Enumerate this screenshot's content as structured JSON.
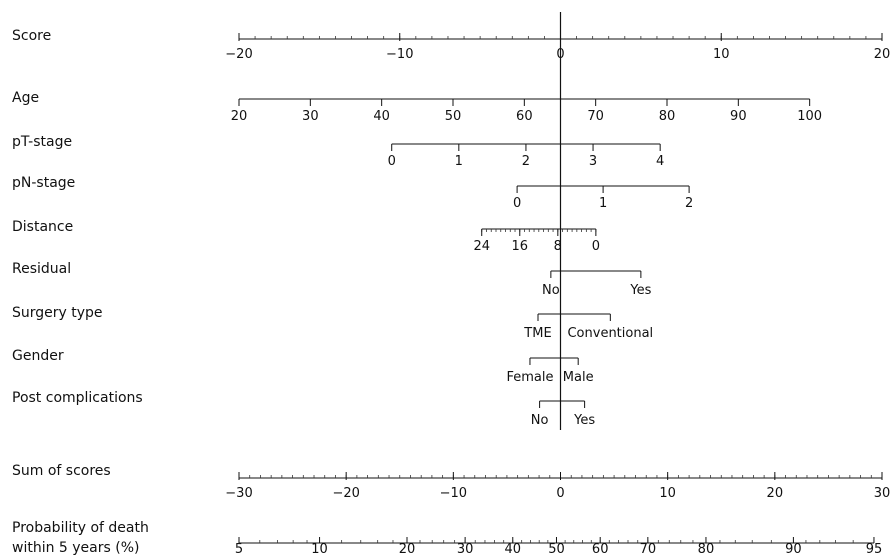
{
  "chart_data": {
    "type": "nomogram",
    "rows": [
      {
        "id": "score",
        "label": "Score",
        "kind": "axis",
        "min": -20,
        "max": 20,
        "ticks": [
          -20,
          -10,
          0,
          10,
          20
        ],
        "tick_labels": [
          "−20",
          "−10",
          "0",
          "10",
          "20"
        ],
        "minor_step": 1
      },
      {
        "id": "age",
        "label": "Age",
        "kind": "axis",
        "score_min": -20,
        "score_max": 15.5,
        "values": [
          20,
          30,
          40,
          50,
          60,
          70,
          80,
          90,
          100
        ],
        "tick_labels": [
          "20",
          "30",
          "40",
          "50",
          "60",
          "70",
          "80",
          "90",
          "100"
        ]
      },
      {
        "id": "pt-stage",
        "label": "pT-stage",
        "kind": "axis",
        "score_min": -10.5,
        "score_max": 6.2,
        "values": [
          0,
          1,
          2,
          3,
          4
        ],
        "tick_labels": [
          "0",
          "1",
          "2",
          "3",
          "4"
        ]
      },
      {
        "id": "pn-stage",
        "label": "pN-stage",
        "kind": "axis",
        "score_min": -2.7,
        "score_max": 8.0,
        "values": [
          0,
          1,
          2
        ],
        "tick_labels": [
          "0",
          "1",
          "2"
        ]
      },
      {
        "id": "distance",
        "label": "Distance",
        "kind": "axis",
        "score_min": -4.9,
        "score_max": 2.2,
        "values": [
          24,
          16,
          8,
          0
        ],
        "tick_labels": [
          "24",
          "16",
          "8",
          "0"
        ],
        "minor_count": 24
      },
      {
        "id": "residual",
        "label": "Residual",
        "kind": "categorical",
        "categories": [
          "No",
          "Yes"
        ],
        "scores": [
          -0.6,
          5.0
        ]
      },
      {
        "id": "surgery-type",
        "label": "Surgery type",
        "kind": "categorical",
        "categories": [
          "TME",
          "Conventional"
        ],
        "scores": [
          -1.4,
          3.1
        ]
      },
      {
        "id": "gender",
        "label": "Gender",
        "kind": "categorical",
        "categories": [
          "Female",
          "Male"
        ],
        "scores": [
          -1.9,
          1.1
        ]
      },
      {
        "id": "post-complications",
        "label": "Post complications",
        "kind": "categorical",
        "categories": [
          "No",
          "Yes"
        ],
        "scores": [
          -1.3,
          1.5
        ]
      },
      {
        "id": "sum-of-scores",
        "label": "Sum of scores",
        "kind": "axis",
        "min": -30,
        "max": 30,
        "ticks": [
          -30,
          -20,
          -10,
          0,
          10,
          20,
          30
        ],
        "tick_labels": [
          "−30",
          "−20",
          "−10",
          "0",
          "10",
          "20",
          "30"
        ],
        "minor_step": 1
      },
      {
        "id": "probability",
        "label": [
          "Probability of death",
          "within 5 years (%)"
        ],
        "kind": "axis",
        "score_min": -20,
        "score_max": 19.5,
        "values": [
          5,
          10,
          20,
          30,
          40,
          50,
          60,
          70,
          80,
          90,
          95
        ],
        "tick_labels": [
          "5",
          "10",
          "20",
          "30",
          "40",
          "50",
          "60",
          "70",
          "80",
          "90",
          "95"
        ]
      }
    ],
    "reference_line_at_score": 0
  }
}
